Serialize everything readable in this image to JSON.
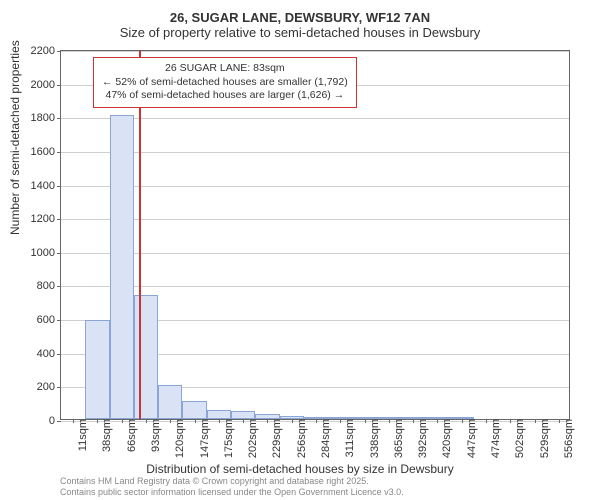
{
  "title": "26, SUGAR LANE, DEWSBURY, WF12 7AN",
  "subtitle": "Size of property relative to semi-detached houses in Dewsbury",
  "y_axis": {
    "label": "Number of semi-detached properties",
    "min": 0,
    "max": 2200,
    "ticks": [
      0,
      200,
      400,
      600,
      800,
      1000,
      1200,
      1400,
      1600,
      1800,
      2000,
      2200
    ]
  },
  "x_axis": {
    "label": "Distribution of semi-detached houses by size in Dewsbury",
    "categories": [
      "11sqm",
      "38sqm",
      "66sqm",
      "93sqm",
      "120sqm",
      "147sqm",
      "175sqm",
      "202sqm",
      "229sqm",
      "256sqm",
      "284sqm",
      "311sqm",
      "338sqm",
      "365sqm",
      "392sqm",
      "420sqm",
      "447sqm",
      "474sqm",
      "502sqm",
      "529sqm",
      "556sqm"
    ]
  },
  "histogram": {
    "type": "histogram",
    "values": [
      0,
      590,
      1810,
      740,
      205,
      110,
      55,
      45,
      30,
      18,
      10,
      5,
      3,
      2,
      1,
      1,
      1,
      0,
      0,
      0,
      0
    ],
    "bar_color": "#d9e3f5",
    "bar_border_color": "#8ba5d6",
    "bar_width_ratio": 1.0
  },
  "marker": {
    "position_index": 2.7,
    "color": "#cc3333"
  },
  "annotation": {
    "lines": [
      "26 SUGAR LANE: 83sqm",
      "← 52% of semi-detached houses are smaller (1,792)",
      "47% of semi-detached houses are larger (1,626) →"
    ],
    "border_color": "#cc3333",
    "background": "#ffffff",
    "fontsize": 10.5
  },
  "grid_color": "#d0d0d0",
  "plot_border_color": "#666666",
  "background_color": "#ffffff",
  "attribution": {
    "line1": "Contains HM Land Registry data © Crown copyright and database right 2025.",
    "line2": "Contains public sector information licensed under the Open Government Licence v3.0."
  }
}
